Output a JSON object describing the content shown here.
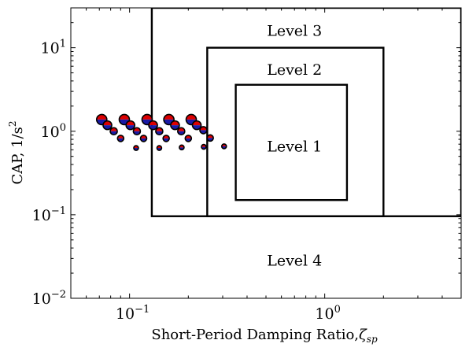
{
  "chart_data": {
    "type": "scatter",
    "xlabel": "Short-Period Damping Ratio,",
    "xlabel_symbol": "ζ",
    "xlabel_sub": "sp",
    "ylabel": "CAP, 1/s",
    "ylabel_sup": "2",
    "x_scale": "log",
    "y_scale": "log",
    "xlim": [
      0.05,
      5
    ],
    "ylim": [
      0.01,
      30
    ],
    "x_ticks": [
      {
        "value": 0.1,
        "base": "10",
        "exp": "−1"
      },
      {
        "value": 1,
        "base": "10",
        "exp": "0"
      }
    ],
    "y_ticks": [
      {
        "value": 0.01,
        "base": "10",
        "exp": "−2"
      },
      {
        "value": 0.1,
        "base": "10",
        "exp": "−1"
      },
      {
        "value": 1,
        "base": "10",
        "exp": "0"
      },
      {
        "value": 10,
        "base": "10",
        "exp": "1"
      }
    ],
    "grid": false,
    "regions": [
      {
        "name": "Level 1",
        "x_min": 0.35,
        "x_max": 1.3,
        "y_min": 0.15,
        "y_max": 3.6,
        "label": "Level 1",
        "label_x": 0.7,
        "label_y": 0.65
      },
      {
        "name": "Level 2",
        "x_min": 0.25,
        "x_max": 2.0,
        "y_min": 0.096,
        "y_max": 10,
        "label": "Level 2",
        "label_x": 0.7,
        "label_y": 5.4
      },
      {
        "name": "Level 3",
        "x_min": 0.13,
        "x_max": 5.0,
        "y_min": 0.096,
        "y_max": 30,
        "label": "Level 3",
        "label_x": 0.7,
        "label_y": 15.8
      },
      {
        "name": "Level 4",
        "label": "Level 4",
        "label_x": 0.7,
        "label_y": 0.028
      }
    ],
    "points": [
      {
        "x": 0.072,
        "y": 1.38,
        "r": 6.5
      },
      {
        "x": 0.077,
        "y": 1.18,
        "r": 5.5
      },
      {
        "x": 0.083,
        "y": 1.0,
        "r": 4.5
      },
      {
        "x": 0.09,
        "y": 0.82,
        "r": 4.0
      },
      {
        "x": 0.108,
        "y": 0.63,
        "r": 3.0
      },
      {
        "x": 0.094,
        "y": 1.38,
        "r": 6.5
      },
      {
        "x": 0.101,
        "y": 1.18,
        "r": 5.5
      },
      {
        "x": 0.109,
        "y": 1.0,
        "r": 4.5
      },
      {
        "x": 0.118,
        "y": 0.82,
        "r": 4.0
      },
      {
        "x": 0.142,
        "y": 0.63,
        "r": 3.0
      },
      {
        "x": 0.123,
        "y": 1.38,
        "r": 6.5
      },
      {
        "x": 0.132,
        "y": 1.18,
        "r": 5.5
      },
      {
        "x": 0.142,
        "y": 1.0,
        "r": 4.5
      },
      {
        "x": 0.154,
        "y": 0.82,
        "r": 4.0
      },
      {
        "x": 0.185,
        "y": 0.64,
        "r": 3.0
      },
      {
        "x": 0.159,
        "y": 1.38,
        "r": 6.5
      },
      {
        "x": 0.171,
        "y": 1.18,
        "r": 5.5
      },
      {
        "x": 0.184,
        "y": 1.0,
        "r": 4.5
      },
      {
        "x": 0.2,
        "y": 0.82,
        "r": 4.0
      },
      {
        "x": 0.24,
        "y": 0.65,
        "r": 3.0
      },
      {
        "x": 0.207,
        "y": 1.38,
        "r": 6.5
      },
      {
        "x": 0.221,
        "y": 1.18,
        "r": 5.5
      },
      {
        "x": 0.239,
        "y": 1.03,
        "r": 4.5
      },
      {
        "x": 0.259,
        "y": 0.83,
        "r": 4.0
      },
      {
        "x": 0.305,
        "y": 0.66,
        "r": 3.0
      }
    ],
    "colors": {
      "upper_half": "#dd0000",
      "lower_half": "#1a1aa6",
      "outline": "#000000",
      "boundary": "#000000"
    }
  }
}
